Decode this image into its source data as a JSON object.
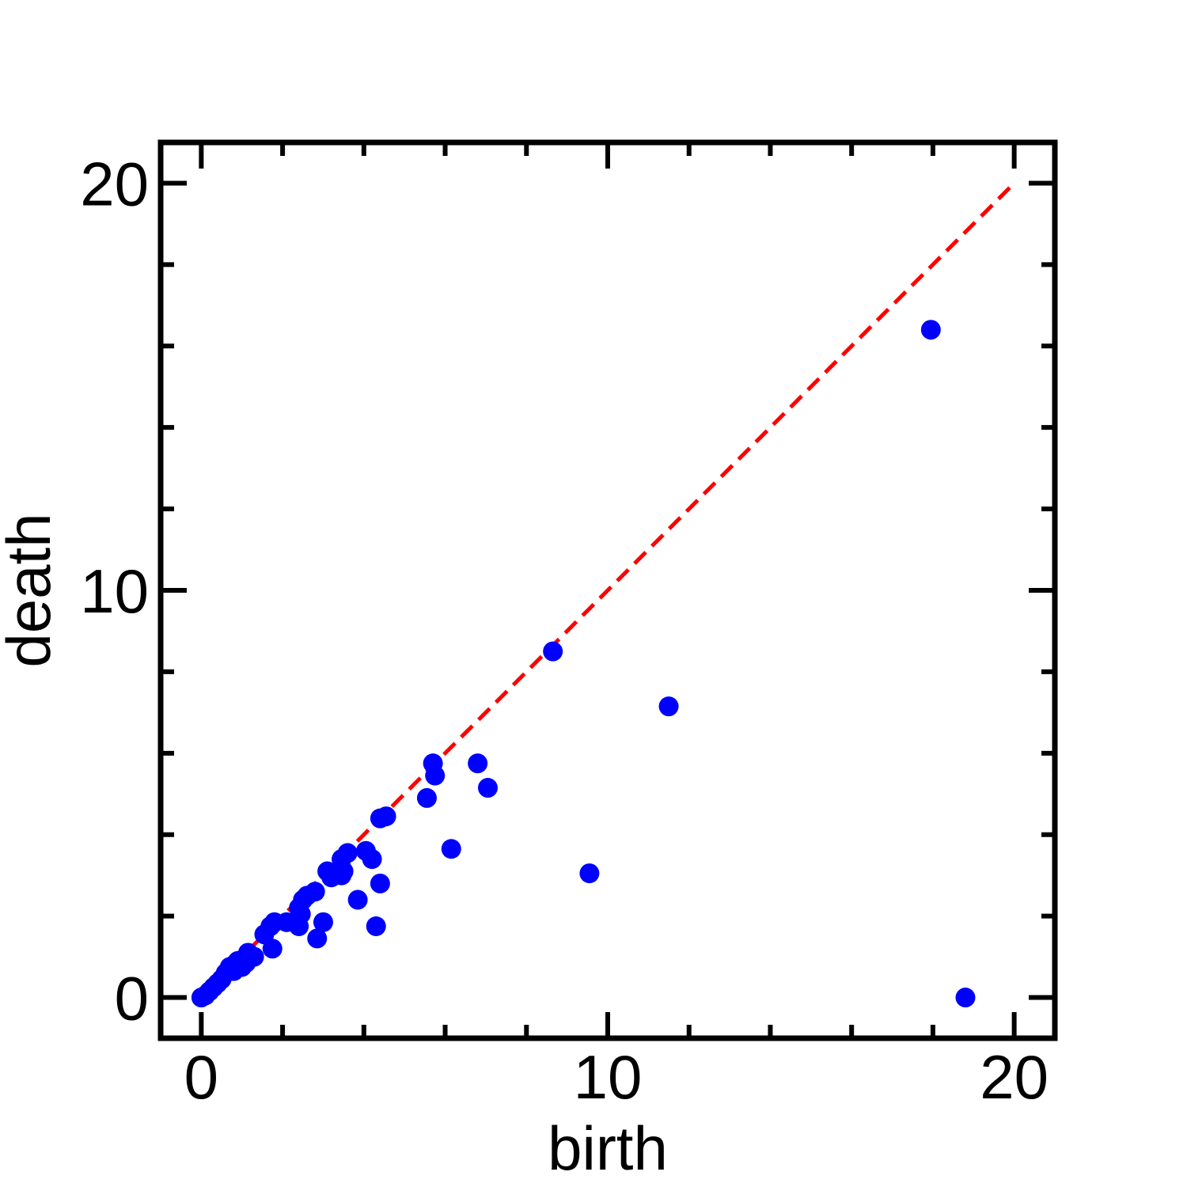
{
  "chart_data": {
    "type": "scatter",
    "title": "",
    "xlabel": "birth",
    "ylabel": "death",
    "xlim": [
      -1,
      21
    ],
    "ylim": [
      -1,
      21
    ],
    "x_major_ticks": [
      0,
      10,
      20
    ],
    "y_major_ticks": [
      0,
      10,
      20
    ],
    "x_minor_ticks": [
      2,
      4,
      6,
      8,
      12,
      14,
      16,
      18
    ],
    "y_minor_ticks": [
      2,
      4,
      6,
      8,
      12,
      14,
      16,
      18
    ],
    "grid": false,
    "diagonal": {
      "from": [
        0,
        0
      ],
      "to": [
        20,
        20
      ],
      "style": "dashed",
      "color": "#ff0000"
    },
    "marker_color": "#0000ff",
    "points": [
      {
        "x": 0.0,
        "y": 0.0
      },
      {
        "x": 0.1,
        "y": 0.05
      },
      {
        "x": 0.2,
        "y": 0.15
      },
      {
        "x": 0.3,
        "y": 0.25
      },
      {
        "x": 0.4,
        "y": 0.35
      },
      {
        "x": 0.5,
        "y": 0.45
      },
      {
        "x": 0.6,
        "y": 0.6
      },
      {
        "x": 0.7,
        "y": 0.75
      },
      {
        "x": 0.8,
        "y": 0.8
      },
      {
        "x": 0.8,
        "y": 0.65
      },
      {
        "x": 0.9,
        "y": 0.9
      },
      {
        "x": 1.0,
        "y": 0.75
      },
      {
        "x": 1.1,
        "y": 0.85
      },
      {
        "x": 1.15,
        "y": 1.1
      },
      {
        "x": 1.3,
        "y": 1.0
      },
      {
        "x": 1.55,
        "y": 1.55
      },
      {
        "x": 1.7,
        "y": 1.75
      },
      {
        "x": 1.8,
        "y": 1.85
      },
      {
        "x": 1.75,
        "y": 1.2
      },
      {
        "x": 2.1,
        "y": 1.85
      },
      {
        "x": 2.4,
        "y": 1.75
      },
      {
        "x": 2.4,
        "y": 2.2
      },
      {
        "x": 2.45,
        "y": 2.05
      },
      {
        "x": 2.5,
        "y": 2.4
      },
      {
        "x": 2.6,
        "y": 2.5
      },
      {
        "x": 2.8,
        "y": 2.6
      },
      {
        "x": 2.85,
        "y": 1.45
      },
      {
        "x": 3.0,
        "y": 1.85
      },
      {
        "x": 3.1,
        "y": 3.1
      },
      {
        "x": 3.2,
        "y": 2.95
      },
      {
        "x": 3.45,
        "y": 3.0
      },
      {
        "x": 3.5,
        "y": 3.1
      },
      {
        "x": 3.45,
        "y": 3.4
      },
      {
        "x": 3.6,
        "y": 3.55
      },
      {
        "x": 3.85,
        "y": 2.4
      },
      {
        "x": 4.05,
        "y": 3.6
      },
      {
        "x": 4.2,
        "y": 3.4
      },
      {
        "x": 4.3,
        "y": 1.75
      },
      {
        "x": 4.4,
        "y": 2.8
      },
      {
        "x": 4.4,
        "y": 4.4
      },
      {
        "x": 4.55,
        "y": 4.45
      },
      {
        "x": 5.55,
        "y": 4.9
      },
      {
        "x": 5.7,
        "y": 5.75
      },
      {
        "x": 5.75,
        "y": 5.45
      },
      {
        "x": 6.15,
        "y": 3.65
      },
      {
        "x": 6.8,
        "y": 5.75
      },
      {
        "x": 7.05,
        "y": 5.15
      },
      {
        "x": 8.65,
        "y": 8.5
      },
      {
        "x": 9.55,
        "y": 3.05
      },
      {
        "x": 11.5,
        "y": 7.15
      },
      {
        "x": 17.95,
        "y": 16.4
      },
      {
        "x": 18.8,
        "y": 0.0
      }
    ]
  }
}
